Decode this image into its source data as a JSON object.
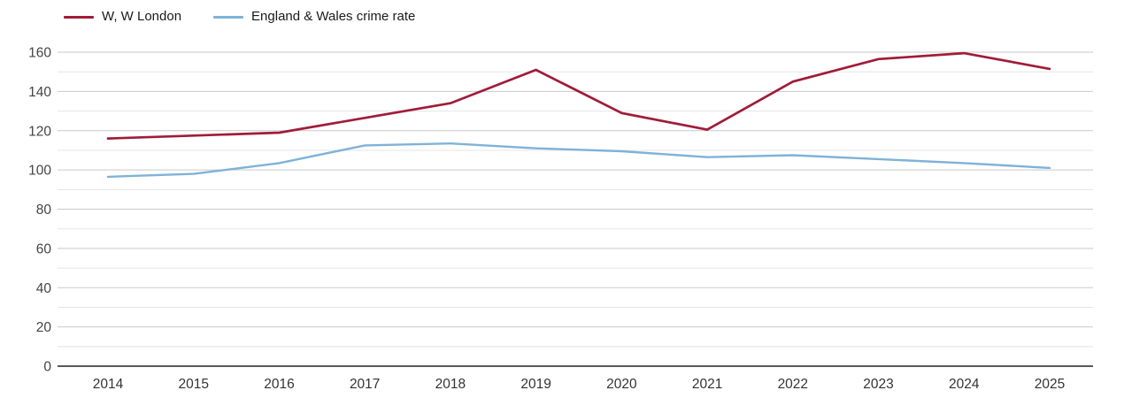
{
  "chart_data": {
    "type": "line",
    "title": "",
    "xlabel": "",
    "ylabel": "",
    "categories": [
      "2014",
      "2015",
      "2016",
      "2017",
      "2018",
      "2019",
      "2020",
      "2021",
      "2022",
      "2023",
      "2024",
      "2025"
    ],
    "series": [
      {
        "name": "W, W London",
        "color": "#a01c38",
        "values": [
          116,
          117.5,
          119,
          126.5,
          134,
          151,
          129,
          120.5,
          145,
          156.5,
          159.5,
          151.5
        ]
      },
      {
        "name": "England & Wales crime rate",
        "color": "#7fb2d7",
        "values": [
          96.5,
          98,
          103.5,
          112.5,
          113.5,
          111,
          109.5,
          106.5,
          107.5,
          105.5,
          103.5,
          101
        ]
      }
    ],
    "ylim": [
      0,
      160
    ],
    "y_tick_labels": [
      0,
      20,
      40,
      60,
      80,
      100,
      120,
      140,
      160
    ],
    "y_minor_step": 10,
    "grid": "horizontal",
    "legend_position": "top-left"
  },
  "legend": {
    "items": [
      {
        "label": "W, W London"
      },
      {
        "label": "England & Wales crime rate"
      }
    ]
  },
  "colors": {
    "series_1": "#a01c38",
    "series_2": "#7fb2d7",
    "grid_major": "#c9c9c9",
    "grid_minor": "#e5e5e5",
    "axis_line": "#222222",
    "tick_label": "#444444"
  }
}
